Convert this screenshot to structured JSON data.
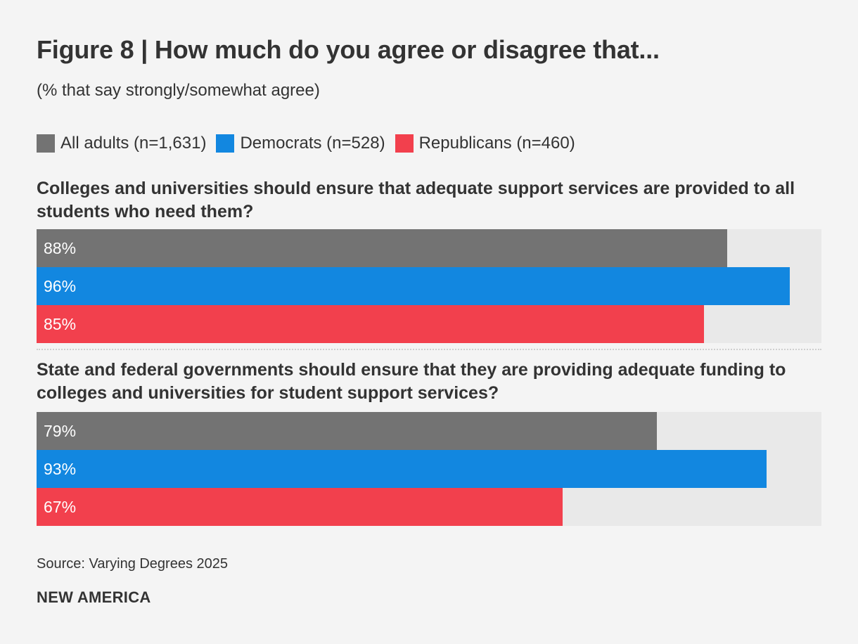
{
  "chart_data": {
    "type": "bar",
    "orientation": "horizontal",
    "title": "Figure 8 | How much do you agree or disagree that...",
    "subtitle": "(% that say strongly/somewhat agree)",
    "xlim": [
      0,
      100
    ],
    "legend_position": "top-left",
    "series_colors": [
      "#737373",
      "#1287e0",
      "#f2404d"
    ],
    "series": [
      {
        "name": "All adults (n=1,631)",
        "values": [
          88,
          79
        ]
      },
      {
        "name": "Democrats (n=528)",
        "values": [
          96,
          93
        ]
      },
      {
        "name": "Republicans (n=460)",
        "values": [
          85,
          67
        ]
      }
    ],
    "categories": [
      "Colleges and universities should ensure that adequate support services are provided to all students who need them?",
      "State and federal governments should ensure that they are providing adequate funding to colleges and universities for student support services?"
    ],
    "value_labels": [
      [
        "88%",
        "96%",
        "85%"
      ],
      [
        "79%",
        "93%",
        "67%"
      ]
    ]
  },
  "source": "Source: Varying Degrees 2025",
  "brand": "NEW AMERICA"
}
